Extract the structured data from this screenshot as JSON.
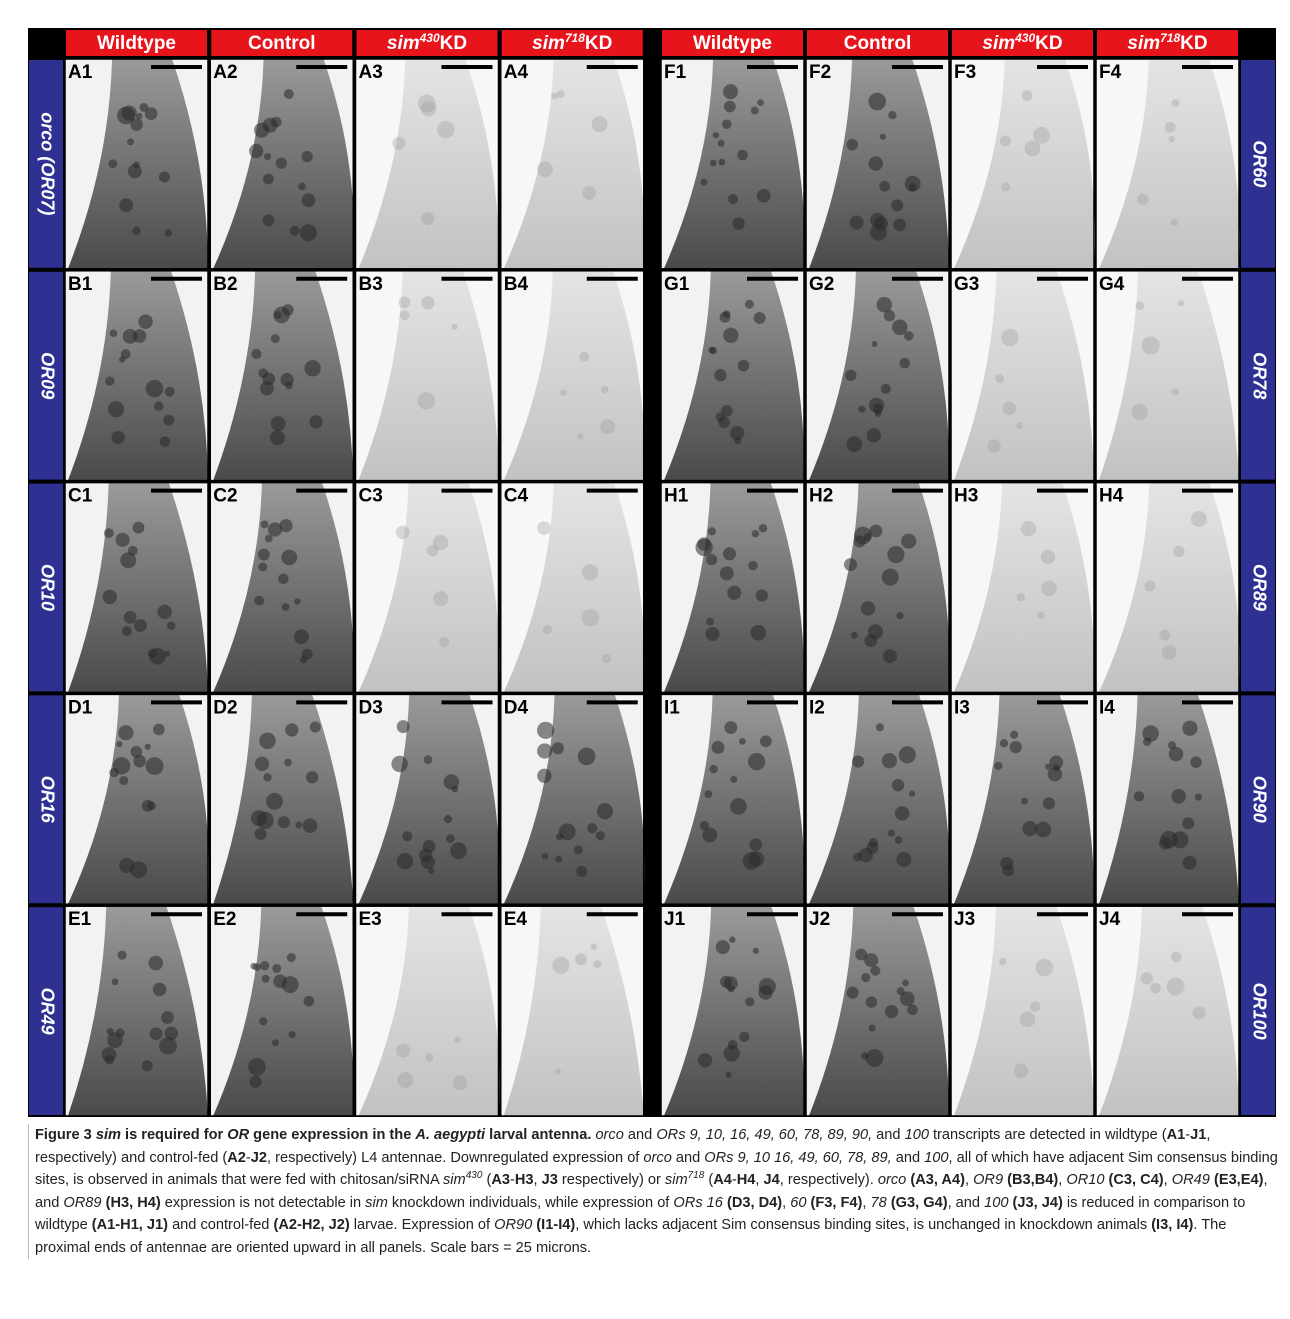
{
  "column_headers": [
    [
      {
        "text": "Wildtype"
      }
    ],
    [
      {
        "text": "Control"
      }
    ],
    [
      {
        "text": "sim",
        "style": "i"
      },
      {
        "text": "430",
        "style": "sup-i"
      },
      {
        "text": "KD"
      }
    ],
    [
      {
        "text": "sim",
        "style": "i"
      },
      {
        "text": "718",
        "style": "sup-i"
      },
      {
        "text": "KD"
      }
    ],
    [
      {
        "text": "Wildtype"
      }
    ],
    [
      {
        "text": "Control"
      }
    ],
    [
      {
        "text": "sim",
        "style": "i"
      },
      {
        "text": "430",
        "style": "sup-i"
      },
      {
        "text": "KD"
      }
    ],
    [
      {
        "text": "sim",
        "style": "i"
      },
      {
        "text": "718",
        "style": "sup-i"
      },
      {
        "text": "KD"
      }
    ]
  ],
  "row_labels_left": [
    "orco (OR07)",
    "OR09",
    "OR10",
    "OR16",
    "OR49"
  ],
  "row_labels_right": [
    "OR60",
    "OR78",
    "OR89",
    "OR90",
    "OR100"
  ],
  "panels": [
    [
      "A1",
      "A2",
      "A3",
      "A4",
      "F1",
      "F2",
      "F3",
      "F4"
    ],
    [
      "B1",
      "B2",
      "B3",
      "B4",
      "G1",
      "G2",
      "G3",
      "G4"
    ],
    [
      "C1",
      "C2",
      "C3",
      "C4",
      "H1",
      "H2",
      "H3",
      "H4"
    ],
    [
      "D1",
      "D2",
      "D3",
      "D4",
      "I1",
      "I2",
      "I3",
      "I4"
    ],
    [
      "E1",
      "E2",
      "E3",
      "E4",
      "J1",
      "J2",
      "J3",
      "J4"
    ]
  ],
  "caption": [
    {
      "text": "Figure 3 ",
      "style": "b"
    },
    {
      "text": "sim",
      "style": "bi"
    },
    {
      "text": " is required for ",
      "style": "b"
    },
    {
      "text": "OR",
      "style": "bi"
    },
    {
      "text": " gene expression in the ",
      "style": "b"
    },
    {
      "text": "A. aegypti",
      "style": "bi"
    },
    {
      "text": " larval antenna.",
      "style": "b"
    },
    {
      "text": " orco",
      "style": "i"
    },
    {
      "text": " and "
    },
    {
      "text": "ORs 9, 10, 16, 49, 60, 78, 89, 90,",
      "style": "i"
    },
    {
      "text": " and "
    },
    {
      "text": "100",
      "style": "i"
    },
    {
      "text": " transcripts are detected in wildtype ("
    },
    {
      "text": "A1",
      "style": "b"
    },
    {
      "text": "-"
    },
    {
      "text": "J1",
      "style": "b"
    },
    {
      "text": ", respectively) and control-fed ("
    },
    {
      "text": "A2",
      "style": "b"
    },
    {
      "text": "-"
    },
    {
      "text": "J2",
      "style": "b"
    },
    {
      "text": ", respectively) L4 antennae. Downregulated expression of "
    },
    {
      "text": "orco",
      "style": "i"
    },
    {
      "text": " and "
    },
    {
      "text": "ORs 9, 10 16, 49, 60, 78, 89,",
      "style": "i"
    },
    {
      "text": " and "
    },
    {
      "text": "100",
      "style": "i"
    },
    {
      "text": ", all of which have adjacent Sim consensus binding sites, is observed in animals that were fed with chitosan/siRNA "
    },
    {
      "text": "sim",
      "style": "i"
    },
    {
      "text": "430",
      "style": "sup-i"
    },
    {
      "text": " ("
    },
    {
      "text": "A3",
      "style": "b"
    },
    {
      "text": "-"
    },
    {
      "text": "H3",
      "style": "b"
    },
    {
      "text": ", "
    },
    {
      "text": "J3",
      "style": "b"
    },
    {
      "text": " respectively) or "
    },
    {
      "text": "sim",
      "style": "i"
    },
    {
      "text": "718",
      "style": "sup-i"
    },
    {
      "text": " ("
    },
    {
      "text": "A4",
      "style": "b"
    },
    {
      "text": "-"
    },
    {
      "text": "H4",
      "style": "b"
    },
    {
      "text": ", "
    },
    {
      "text": "J4",
      "style": "b"
    },
    {
      "text": ", respectively). "
    },
    {
      "text": "orco",
      "style": "i"
    },
    {
      "text": " "
    },
    {
      "text": "(A3, A4)",
      "style": "b"
    },
    {
      "text": ", "
    },
    {
      "text": "OR9",
      "style": "i"
    },
    {
      "text": " "
    },
    {
      "text": "(B3,B4)",
      "style": "b"
    },
    {
      "text": ", "
    },
    {
      "text": "OR10",
      "style": "i"
    },
    {
      "text": " "
    },
    {
      "text": "(C3, C4)",
      "style": "b"
    },
    {
      "text": ", "
    },
    {
      "text": "OR49",
      "style": "i"
    },
    {
      "text": " "
    },
    {
      "text": "(E3,E4)",
      "style": "b"
    },
    {
      "text": ", and "
    },
    {
      "text": "OR89",
      "style": "i"
    },
    {
      "text": " "
    },
    {
      "text": "(H3, H4)",
      "style": "b"
    },
    {
      "text": " expression is not detectable in "
    },
    {
      "text": "sim",
      "style": "i"
    },
    {
      "text": " knockdown individuals, while expression of "
    },
    {
      "text": "ORs 16",
      "style": "i"
    },
    {
      "text": " "
    },
    {
      "text": "(D3, D4)",
      "style": "b"
    },
    {
      "text": ", "
    },
    {
      "text": "60",
      "style": "i"
    },
    {
      "text": " "
    },
    {
      "text": "(F3, F4)",
      "style": "b"
    },
    {
      "text": ", "
    },
    {
      "text": "78",
      "style": "i"
    },
    {
      "text": " "
    },
    {
      "text": "(G3, G4)",
      "style": "b"
    },
    {
      "text": ", and "
    },
    {
      "text": "100",
      "style": "i"
    },
    {
      "text": " "
    },
    {
      "text": "(J3, J4)",
      "style": "b"
    },
    {
      "text": " is reduced in comparison to wildtype "
    },
    {
      "text": "(A1-H1, J1)",
      "style": "b"
    },
    {
      "text": " and control-fed "
    },
    {
      "text": "(A2-H2, J2)",
      "style": "b"
    },
    {
      "text": " larvae. Expression of "
    },
    {
      "text": "OR90",
      "style": "i"
    },
    {
      "text": " "
    },
    {
      "text": "(I1-I4)",
      "style": "b"
    },
    {
      "text": ", which lacks adjacent Sim consensus binding sites, is unchanged in knockdown animals "
    },
    {
      "text": "(I3, I4)",
      "style": "b"
    },
    {
      "text": ". The proximal ends of antennae are oriented upward in all panels. Scale bars = 25 microns."
    }
  ]
}
